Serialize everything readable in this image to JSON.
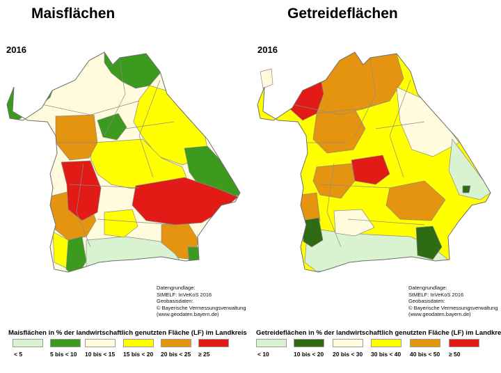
{
  "maize": {
    "title": "Maisflächen",
    "year": "2016",
    "credits": [
      "Datengrundlage:",
      "StMELF: InVeKoS 2016",
      "Geobasisdaten:",
      "© Bayerische Vermessungsverwaltung",
      "(www.geodaten.bayern.de)"
    ],
    "legend_title": "Maisflächen in % der landwirtschaftlich genutzten Fläche (LF) im Landkreis",
    "legend": [
      {
        "label": "< 5",
        "color": "#d9f2cf"
      },
      {
        "label": "5 bis < 10",
        "color": "#3c9a1e"
      },
      {
        "label": "10 bis < 15",
        "color": "#fffbdc"
      },
      {
        "label": "15 bis < 20",
        "color": "#ffff00"
      },
      {
        "label": "20 bis < 25",
        "color": "#e59410"
      },
      {
        "label": "≥ 25",
        "color": "#e31b17"
      }
    ]
  },
  "grain": {
    "title": "Getreideflächen",
    "year": "2016",
    "credits": [
      "Datengrundlage:",
      "StMELF: InVeKoS 2016",
      "Geobasisdaten:",
      "© Bayerische Vermessungsverwaltung",
      "(www.geodaten.bayern.de)"
    ],
    "legend_title": "Getreideflächen in % der landwirtschaftlich genutzten Fläche (LF) im Landkreis",
    "legend": [
      {
        "label": "< 10",
        "color": "#d9f2cf"
      },
      {
        "label": "10 bis < 20",
        "color": "#2e6b12"
      },
      {
        "label": "20 bis < 30",
        "color": "#fffbdc"
      },
      {
        "label": "30 bis < 40",
        "color": "#ffff00"
      },
      {
        "label": "40 bis < 50",
        "color": "#e59410"
      },
      {
        "label": "≥ 50",
        "color": "#e31b17"
      }
    ]
  }
}
